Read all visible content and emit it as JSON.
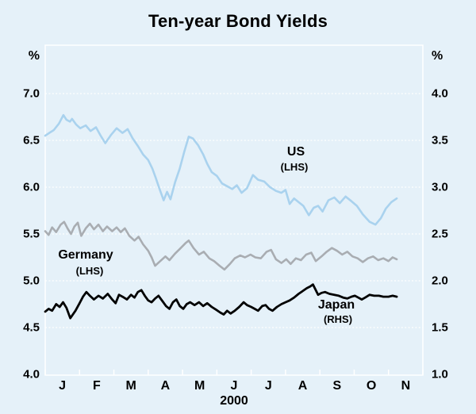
{
  "colors": {
    "background": "#e5f1f9",
    "frame_and_grid": "#ffffff",
    "text": "#000000",
    "us_line": "#a9d2ee",
    "germany_line": "#a9adb2",
    "japan_line": "#000000"
  },
  "chart_data": {
    "type": "line",
    "title": "Ten-year Bond Yields",
    "grid": "horizontal white dotted lines at every 0.5 tick, white outer frame",
    "legend": "inline bold labels next to each line",
    "x_axis": {
      "month_labels": [
        "J",
        "F",
        "M",
        "A",
        "M",
        "J",
        "J",
        "A",
        "S",
        "O",
        "N"
      ],
      "year_label": "2000",
      "range_months": [
        0,
        11
      ],
      "note": "x in months since 1 Jan 2000; data ends mid-November"
    },
    "left_axis": {
      "unit": "%",
      "range": [
        4.0,
        7.0
      ],
      "tick_step": 0.5,
      "tick_labels": [
        "7.0",
        "6.5",
        "6.0",
        "5.5",
        "5.0",
        "4.5",
        "4.0"
      ]
    },
    "right_axis": {
      "unit": "%",
      "range": [
        1.0,
        4.0
      ],
      "tick_step": 0.5,
      "tick_labels": [
        "4.0",
        "3.5",
        "3.0",
        "2.5",
        "2.0",
        "1.5",
        "1.0"
      ]
    },
    "series": [
      {
        "name": "US",
        "label": "US",
        "sub_label": "(LHS)",
        "axis": "LHS",
        "color": "#a9d2ee",
        "stroke_width": 2.6,
        "points": [
          [
            0,
            6.55
          ],
          [
            0.12,
            6.58
          ],
          [
            0.25,
            6.61
          ],
          [
            0.4,
            6.68
          ],
          [
            0.53,
            6.77
          ],
          [
            0.62,
            6.72
          ],
          [
            0.72,
            6.7
          ],
          [
            0.78,
            6.73
          ],
          [
            0.9,
            6.67
          ],
          [
            1.02,
            6.63
          ],
          [
            1.18,
            6.66
          ],
          [
            1.32,
            6.6
          ],
          [
            1.48,
            6.64
          ],
          [
            1.6,
            6.56
          ],
          [
            1.75,
            6.47
          ],
          [
            1.92,
            6.56
          ],
          [
            2.08,
            6.63
          ],
          [
            2.25,
            6.58
          ],
          [
            2.4,
            6.62
          ],
          [
            2.55,
            6.52
          ],
          [
            2.7,
            6.44
          ],
          [
            2.85,
            6.35
          ],
          [
            3.0,
            6.29
          ],
          [
            3.12,
            6.2
          ],
          [
            3.22,
            6.1
          ],
          [
            3.32,
            5.99
          ],
          [
            3.45,
            5.86
          ],
          [
            3.55,
            5.95
          ],
          [
            3.65,
            5.87
          ],
          [
            3.78,
            6.05
          ],
          [
            3.92,
            6.2
          ],
          [
            4.05,
            6.38
          ],
          [
            4.18,
            6.54
          ],
          [
            4.3,
            6.52
          ],
          [
            4.45,
            6.45
          ],
          [
            4.6,
            6.35
          ],
          [
            4.72,
            6.25
          ],
          [
            4.85,
            6.16
          ],
          [
            5.0,
            6.12
          ],
          [
            5.15,
            6.04
          ],
          [
            5.3,
            6.01
          ],
          [
            5.45,
            5.98
          ],
          [
            5.58,
            6.02
          ],
          [
            5.72,
            5.94
          ],
          [
            5.88,
            5.99
          ],
          [
            6.05,
            6.13
          ],
          [
            6.2,
            6.08
          ],
          [
            6.38,
            6.06
          ],
          [
            6.55,
            6.0
          ],
          [
            6.72,
            5.96
          ],
          [
            6.88,
            5.94
          ],
          [
            7.0,
            5.97
          ],
          [
            7.12,
            5.82
          ],
          [
            7.25,
            5.88
          ],
          [
            7.38,
            5.84
          ],
          [
            7.52,
            5.8
          ],
          [
            7.68,
            5.7
          ],
          [
            7.82,
            5.78
          ],
          [
            7.95,
            5.8
          ],
          [
            8.08,
            5.74
          ],
          [
            8.25,
            5.86
          ],
          [
            8.42,
            5.89
          ],
          [
            8.58,
            5.83
          ],
          [
            8.75,
            5.9
          ],
          [
            8.92,
            5.85
          ],
          [
            9.08,
            5.8
          ],
          [
            9.25,
            5.71
          ],
          [
            9.45,
            5.63
          ],
          [
            9.62,
            5.6
          ],
          [
            9.78,
            5.67
          ],
          [
            9.92,
            5.77
          ],
          [
            10.08,
            5.84
          ],
          [
            10.24,
            5.88
          ]
        ]
      },
      {
        "name": "Germany",
        "label": "Germany",
        "sub_label": "(LHS)",
        "axis": "LHS",
        "color": "#a9adb2",
        "stroke_width": 2.6,
        "points": [
          [
            0,
            5.53
          ],
          [
            0.1,
            5.49
          ],
          [
            0.2,
            5.57
          ],
          [
            0.32,
            5.52
          ],
          [
            0.45,
            5.6
          ],
          [
            0.55,
            5.63
          ],
          [
            0.65,
            5.56
          ],
          [
            0.75,
            5.5
          ],
          [
            0.85,
            5.58
          ],
          [
            0.95,
            5.62
          ],
          [
            1.05,
            5.48
          ],
          [
            1.18,
            5.56
          ],
          [
            1.3,
            5.61
          ],
          [
            1.42,
            5.55
          ],
          [
            1.55,
            5.6
          ],
          [
            1.68,
            5.53
          ],
          [
            1.8,
            5.58
          ],
          [
            1.95,
            5.53
          ],
          [
            2.08,
            5.57
          ],
          [
            2.2,
            5.52
          ],
          [
            2.32,
            5.56
          ],
          [
            2.45,
            5.48
          ],
          [
            2.6,
            5.43
          ],
          [
            2.72,
            5.47
          ],
          [
            2.85,
            5.39
          ],
          [
            3.0,
            5.32
          ],
          [
            3.1,
            5.25
          ],
          [
            3.2,
            5.16
          ],
          [
            3.35,
            5.21
          ],
          [
            3.5,
            5.26
          ],
          [
            3.62,
            5.22
          ],
          [
            3.78,
            5.29
          ],
          [
            3.92,
            5.34
          ],
          [
            4.08,
            5.4
          ],
          [
            4.18,
            5.43
          ],
          [
            4.32,
            5.35
          ],
          [
            4.48,
            5.28
          ],
          [
            4.62,
            5.31
          ],
          [
            4.78,
            5.24
          ],
          [
            4.92,
            5.21
          ],
          [
            5.08,
            5.16
          ],
          [
            5.22,
            5.12
          ],
          [
            5.38,
            5.18
          ],
          [
            5.52,
            5.24
          ],
          [
            5.68,
            5.27
          ],
          [
            5.82,
            5.25
          ],
          [
            5.98,
            5.28
          ],
          [
            6.12,
            5.25
          ],
          [
            6.28,
            5.24
          ],
          [
            6.45,
            5.31
          ],
          [
            6.58,
            5.33
          ],
          [
            6.72,
            5.23
          ],
          [
            6.88,
            5.19
          ],
          [
            7.02,
            5.23
          ],
          [
            7.15,
            5.18
          ],
          [
            7.3,
            5.24
          ],
          [
            7.45,
            5.22
          ],
          [
            7.6,
            5.28
          ],
          [
            7.75,
            5.3
          ],
          [
            7.88,
            5.21
          ],
          [
            8.05,
            5.26
          ],
          [
            8.2,
            5.31
          ],
          [
            8.35,
            5.35
          ],
          [
            8.5,
            5.32
          ],
          [
            8.65,
            5.28
          ],
          [
            8.8,
            5.31
          ],
          [
            8.95,
            5.26
          ],
          [
            9.1,
            5.24
          ],
          [
            9.25,
            5.2
          ],
          [
            9.4,
            5.24
          ],
          [
            9.55,
            5.26
          ],
          [
            9.7,
            5.22
          ],
          [
            9.85,
            5.24
          ],
          [
            10.0,
            5.21
          ],
          [
            10.12,
            5.25
          ],
          [
            10.24,
            5.23
          ]
        ]
      },
      {
        "name": "Japan",
        "label": "Japan",
        "sub_label": "(RHS)",
        "axis": "RHS",
        "color": "#000000",
        "stroke_width": 2.8,
        "points": [
          [
            0,
            1.67
          ],
          [
            0.1,
            1.7
          ],
          [
            0.2,
            1.68
          ],
          [
            0.32,
            1.75
          ],
          [
            0.42,
            1.72
          ],
          [
            0.52,
            1.77
          ],
          [
            0.62,
            1.71
          ],
          [
            0.73,
            1.6
          ],
          [
            0.88,
            1.68
          ],
          [
            1.0,
            1.76
          ],
          [
            1.1,
            1.83
          ],
          [
            1.2,
            1.88
          ],
          [
            1.3,
            1.84
          ],
          [
            1.42,
            1.8
          ],
          [
            1.55,
            1.84
          ],
          [
            1.68,
            1.81
          ],
          [
            1.82,
            1.86
          ],
          [
            1.95,
            1.8
          ],
          [
            2.05,
            1.76
          ],
          [
            2.15,
            1.85
          ],
          [
            2.25,
            1.83
          ],
          [
            2.38,
            1.8
          ],
          [
            2.5,
            1.85
          ],
          [
            2.6,
            1.82
          ],
          [
            2.7,
            1.88
          ],
          [
            2.8,
            1.9
          ],
          [
            2.9,
            1.84
          ],
          [
            3.0,
            1.79
          ],
          [
            3.1,
            1.77
          ],
          [
            3.2,
            1.81
          ],
          [
            3.3,
            1.84
          ],
          [
            3.42,
            1.78
          ],
          [
            3.52,
            1.73
          ],
          [
            3.62,
            1.7
          ],
          [
            3.72,
            1.77
          ],
          [
            3.82,
            1.8
          ],
          [
            3.92,
            1.73
          ],
          [
            4.02,
            1.7
          ],
          [
            4.12,
            1.75
          ],
          [
            4.22,
            1.77
          ],
          [
            4.35,
            1.74
          ],
          [
            4.48,
            1.77
          ],
          [
            4.6,
            1.73
          ],
          [
            4.72,
            1.76
          ],
          [
            4.85,
            1.72
          ],
          [
            4.98,
            1.69
          ],
          [
            5.1,
            1.66
          ],
          [
            5.2,
            1.64
          ],
          [
            5.3,
            1.68
          ],
          [
            5.4,
            1.65
          ],
          [
            5.52,
            1.68
          ],
          [
            5.65,
            1.72
          ],
          [
            5.78,
            1.77
          ],
          [
            5.88,
            1.74
          ],
          [
            6.0,
            1.72
          ],
          [
            6.1,
            1.7
          ],
          [
            6.2,
            1.68
          ],
          [
            6.32,
            1.73
          ],
          [
            6.42,
            1.74
          ],
          [
            6.52,
            1.7
          ],
          [
            6.62,
            1.68
          ],
          [
            6.75,
            1.72
          ],
          [
            6.88,
            1.75
          ],
          [
            7.0,
            1.77
          ],
          [
            7.12,
            1.79
          ],
          [
            7.25,
            1.82
          ],
          [
            7.38,
            1.86
          ],
          [
            7.5,
            1.89
          ],
          [
            7.62,
            1.92
          ],
          [
            7.72,
            1.94
          ],
          [
            7.8,
            1.96
          ],
          [
            7.88,
            1.9
          ],
          [
            7.95,
            1.85
          ],
          [
            8.05,
            1.87
          ],
          [
            8.15,
            1.88
          ],
          [
            8.28,
            1.86
          ],
          [
            8.42,
            1.85
          ],
          [
            8.55,
            1.84
          ],
          [
            8.68,
            1.82
          ],
          [
            8.8,
            1.81
          ],
          [
            8.92,
            1.83
          ],
          [
            9.02,
            1.84
          ],
          [
            9.12,
            1.82
          ],
          [
            9.22,
            1.8
          ],
          [
            9.32,
            1.82
          ],
          [
            9.45,
            1.85
          ],
          [
            9.58,
            1.84
          ],
          [
            9.72,
            1.84
          ],
          [
            9.85,
            1.83
          ],
          [
            10.0,
            1.83
          ],
          [
            10.12,
            1.84
          ],
          [
            10.24,
            1.83
          ]
        ]
      }
    ]
  }
}
